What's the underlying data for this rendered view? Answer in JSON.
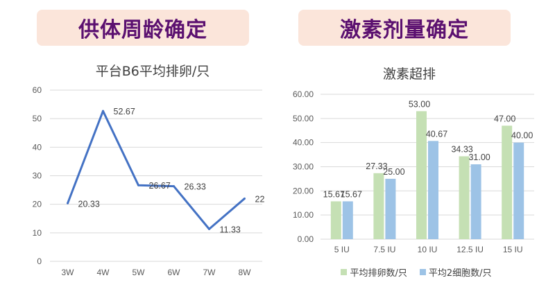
{
  "banners": {
    "left": "供体周龄确定",
    "right": "激素剂量确定"
  },
  "chart_data": [
    {
      "type": "line",
      "title": "平台B6平均排卵/只",
      "categories": [
        "3W",
        "4W",
        "5W",
        "6W",
        "7W",
        "8W"
      ],
      "series": [
        {
          "values": [
            20.33,
            52.67,
            26.67,
            26.33,
            11.33,
            22
          ]
        }
      ],
      "data_labels": [
        "20.33",
        "52.67",
        "26.67",
        "26.33",
        "11.33",
        "22"
      ],
      "ylim": [
        0,
        60
      ],
      "yticks": [
        "0",
        "10",
        "20",
        "30",
        "40",
        "50",
        "60"
      ],
      "grid": true,
      "color": "#4472c4"
    },
    {
      "type": "bar",
      "title": "激素超排",
      "categories": [
        "5 IU",
        "7.5 IU",
        "10 IU",
        "12.5 IU",
        "15 IU"
      ],
      "series": [
        {
          "name": "平均排卵数/只",
          "values": [
            15.67,
            27.33,
            53.0,
            34.33,
            47.0
          ],
          "labels": [
            "15.67",
            "27.33",
            "53.00",
            "34.33",
            "47.00"
          ],
          "color": "#c5e0b4"
        },
        {
          "name": "平均2细胞数/只",
          "values": [
            15.67,
            25.0,
            40.67,
            31.0,
            40.0
          ],
          "labels": [
            "15.67",
            "25.00",
            "40.67",
            "31.00",
            "40.00"
          ],
          "color": "#9dc3e6"
        }
      ],
      "ylim": [
        0,
        60
      ],
      "yticks": [
        "0.00",
        "10.00",
        "20.00",
        "30.00",
        "40.00",
        "50.00",
        "60.00"
      ],
      "grid": true,
      "legend": "bottom"
    }
  ]
}
